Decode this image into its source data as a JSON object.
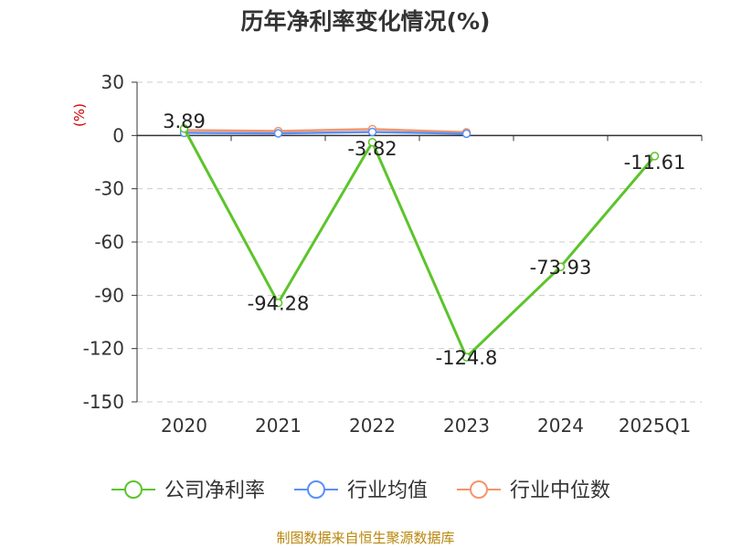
{
  "title": "历年净利率变化情况(%)",
  "source": "制图数据来自恒生聚源数据库",
  "chart_data": {
    "type": "line",
    "title": "历年净利率变化情况(%)",
    "unit_label": "(%)",
    "categories": [
      "2020",
      "2021",
      "2022",
      "2023",
      "2024",
      "2025Q1"
    ],
    "ylim": [
      -150,
      30
    ],
    "yticks": [
      30,
      0,
      -30,
      -60,
      -90,
      -120,
      -150
    ],
    "grid": true,
    "legend_position": "bottom",
    "series": [
      {
        "name": "公司净利率",
        "color": "#5cc42b",
        "values": [
          3.89,
          -94.28,
          -3.82,
          -124.8,
          -73.93,
          -11.61
        ],
        "labels": [
          "3.89",
          "-94.28",
          "-3.82",
          "-124.8",
          "-73.93",
          "-11.61"
        ]
      },
      {
        "name": "行业均值",
        "color": "#5b8ff9",
        "values": [
          1.5,
          1.2,
          2.0,
          1.0,
          null,
          null
        ]
      },
      {
        "name": "行业中位数",
        "color": "#f4956a",
        "values": [
          3.0,
          2.5,
          3.6,
          1.8,
          null,
          null
        ]
      }
    ]
  }
}
